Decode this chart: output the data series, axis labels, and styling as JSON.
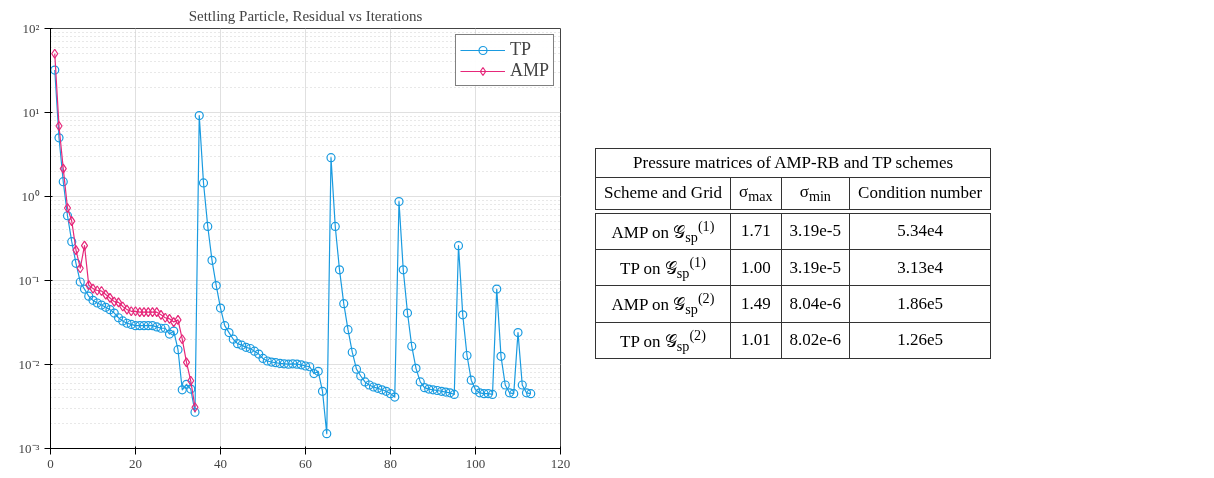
{
  "chart_data": [
    {
      "type": "line",
      "title": "Settling Particle, Residual vs Iterations",
      "log": "y",
      "grid": true,
      "legend": "top right",
      "line_style": "solid",
      "xlim": [
        0,
        120
      ],
      "xticks": [
        0,
        20,
        40,
        60,
        80,
        100,
        120
      ],
      "ylim": [
        0.001,
        100
      ],
      "yticks": [
        {
          "value": 0.001,
          "label": "10⁻³"
        },
        {
          "value": 0.01,
          "label": "10⁻²"
        },
        {
          "value": 0.1,
          "label": "10⁻¹"
        },
        {
          "value": 1,
          "label": "10⁰"
        },
        {
          "value": 10,
          "label": "10¹"
        },
        {
          "value": 100,
          "label": "10²"
        }
      ],
      "series": [
        {
          "name": "TP",
          "color": "#1a9be0",
          "marker": "circle",
          "x": [
            1,
            2,
            3,
            4,
            5,
            6,
            7,
            8,
            9,
            10,
            11,
            12,
            13,
            14,
            15,
            16,
            17,
            18,
            19,
            20,
            21,
            22,
            23,
            24,
            25,
            26,
            27,
            28,
            29,
            30,
            31,
            32,
            33,
            34,
            35,
            36,
            37,
            38,
            39,
            40,
            41,
            42,
            43,
            44,
            45,
            46,
            47,
            48,
            49,
            50,
            51,
            52,
            53,
            54,
            55,
            56,
            57,
            58,
            59,
            60,
            61,
            62,
            63,
            64,
            65,
            66,
            67,
            68,
            69,
            70,
            71,
            72,
            73,
            74,
            75,
            76,
            77,
            78,
            79,
            80,
            81,
            82,
            83,
            84,
            85,
            86,
            87,
            88,
            89,
            90,
            91,
            92,
            93,
            94,
            95,
            96,
            97,
            98,
            99,
            100,
            101,
            102,
            103,
            104,
            105,
            106,
            107,
            108,
            109,
            110,
            111,
            112,
            113
          ],
          "values": [
            32,
            5.0,
            1.5,
            0.59,
            0.29,
            0.16,
            0.096,
            0.079,
            0.065,
            0.058,
            0.054,
            0.051,
            0.048,
            0.045,
            0.041,
            0.036,
            0.033,
            0.031,
            0.03,
            0.029,
            0.029,
            0.029,
            0.029,
            0.029,
            0.028,
            0.027,
            0.027,
            0.023,
            0.025,
            0.015,
            0.005,
            0.0058,
            0.0051,
            0.0027,
            9.2,
            1.45,
            0.44,
            0.174,
            0.087,
            0.047,
            0.029,
            0.024,
            0.02,
            0.0177,
            0.017,
            0.016,
            0.0155,
            0.0144,
            0.0133,
            0.0118,
            0.011,
            0.0107,
            0.0105,
            0.0103,
            0.0102,
            0.0101,
            0.0102,
            0.0101,
            0.0099,
            0.0096,
            0.0094,
            0.0078,
            0.0083,
            0.0048,
            0.0015,
            2.9,
            0.44,
            0.134,
            0.053,
            0.026,
            0.014,
            0.0088,
            0.0073,
            0.0062,
            0.0057,
            0.0054,
            0.0052,
            0.005,
            0.0048,
            0.0045,
            0.0041,
            0.87,
            0.134,
            0.041,
            0.0165,
            0.009,
            0.0062,
            0.0053,
            0.0051,
            0.005,
            0.0049,
            0.0048,
            0.0047,
            0.0046,
            0.0044,
            0.26,
            0.039,
            0.0128,
            0.0065,
            0.005,
            0.0046,
            0.0045,
            0.0045,
            0.0044,
            0.079,
            0.0125,
            0.0057,
            0.0046,
            0.0045,
            0.024,
            0.0057,
            0.0046,
            0.0045
          ]
        },
        {
          "name": "AMP",
          "color": "#e6287a",
          "marker": "diamond",
          "x": [
            1,
            2,
            3,
            4,
            5,
            6,
            7,
            8,
            9,
            10,
            11,
            12,
            13,
            14,
            15,
            16,
            17,
            18,
            19,
            20,
            21,
            22,
            23,
            24,
            25,
            26,
            27,
            28,
            29,
            30,
            31,
            32,
            33,
            34
          ],
          "values": [
            50,
            6.9,
            2.15,
            0.73,
            0.51,
            0.23,
            0.14,
            0.26,
            0.088,
            0.08,
            0.076,
            0.075,
            0.068,
            0.062,
            0.056,
            0.055,
            0.049,
            0.045,
            0.043,
            0.043,
            0.042,
            0.042,
            0.042,
            0.042,
            0.042,
            0.039,
            0.036,
            0.035,
            0.032,
            0.034,
            0.02,
            0.0106,
            0.0064,
            0.0031
          ]
        }
      ]
    },
    {
      "type": "other",
      "title": "Pressure matrices of AMP-RB and TP schemes",
      "categories": [
        "Scheme and Grid",
        "σ$_{max}$",
        "σ$_{min}$",
        "Condition number"
      ],
      "annotations": [
        "AMP on 𝒢$_{sp}$$^{(1)}$",
        "1.71",
        "3.19e-5",
        "5.34e4",
        "TP on 𝒢$_{sp}$$^{(1)}$",
        "1.00",
        "3.19e-5",
        "3.13e4",
        "AMP on 𝒢$_{sp}$$^{(2)}$",
        "1.49",
        "8.04e-6",
        "1.86e5",
        "TP on 𝒢$_{sp}$$^{(2)}$",
        "1.01",
        "8.02e-6",
        "1.26e5"
      ]
    }
  ]
}
